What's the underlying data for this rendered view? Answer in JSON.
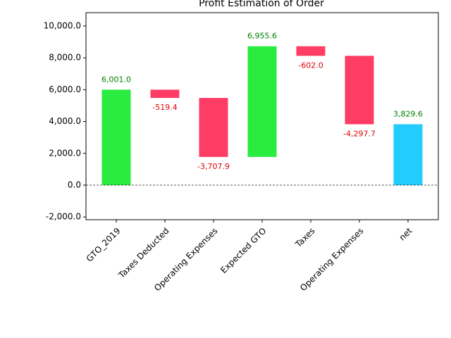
{
  "chart_data": {
    "type": "waterfall",
    "title": "Profit Estimation of Order",
    "categories": [
      "GTO_2019",
      "Taxes Deducted",
      "Operating Expenses",
      "Expected GTO",
      "Taxes",
      "Operating Expenses",
      "net"
    ],
    "values": [
      6001.0,
      -519.4,
      -3707.9,
      6955.6,
      -602.0,
      -4297.7,
      3829.6
    ],
    "value_labels": [
      "6,001.0",
      "-519.4",
      "-3,707.9",
      "6,955.6",
      "-602.0",
      "-4,297.7",
      "3,829.6"
    ],
    "increase_color": "#2aeb3f",
    "decrease_color": "#ff3d64",
    "total_color": "#22ccff",
    "positive_label_color": "#008000",
    "negative_label_color": "#e00000",
    "ylim": [
      -2170,
      10840
    ],
    "yticks": [
      {
        "value": -2000,
        "label": "-2,000.0"
      },
      {
        "value": 0,
        "label": "0.0"
      },
      {
        "value": 2000,
        "label": "2,000.0"
      },
      {
        "value": 4000,
        "label": "4,000.0"
      },
      {
        "value": 6000,
        "label": "6,000.0"
      },
      {
        "value": 8000,
        "label": "8,000.0"
      },
      {
        "value": 10000,
        "label": "10,000.0"
      }
    ]
  }
}
